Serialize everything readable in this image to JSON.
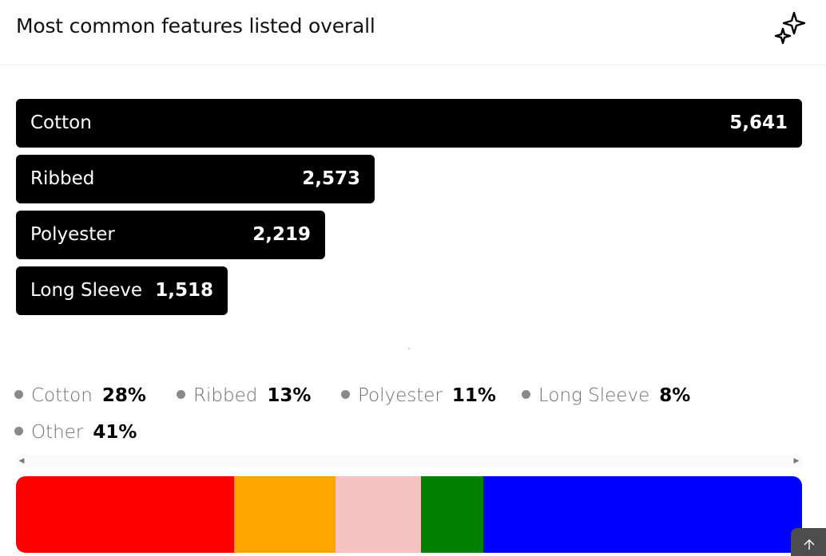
{
  "header": {
    "title": "Most common features listed overall"
  },
  "icons": {
    "ai": "sparkle-icon",
    "scroll_left": "caret-left-icon",
    "scroll_right": "caret-right-icon",
    "corner": "arrow-up-icon"
  },
  "colors": {
    "bar": "#000000",
    "legend_dot": "#8a8a8a"
  },
  "chart_data": [
    {
      "type": "bar",
      "orientation": "horizontal",
      "categories": [
        "Cotton",
        "Ribbed",
        "Polyester",
        "Long Sleeve"
      ],
      "display_labels": [
        "Cotton",
        "Ribbed",
        "Polyester",
        "Long Sleeve"
      ],
      "values": [
        5641,
        2573,
        2219,
        1518
      ],
      "value_labels": [
        "5,641",
        "2,573",
        "2,219",
        "1,518"
      ]
    },
    {
      "type": "bar",
      "orientation": "stacked-horizontal",
      "categories": [
        "Cotton",
        "Ribbed",
        "Polyester",
        "Long Sleeve",
        "Other"
      ],
      "values": [
        28,
        13,
        11,
        8,
        41
      ],
      "value_labels": [
        "28%",
        "13%",
        "11%",
        "8%",
        "41%"
      ],
      "colors": [
        "#ff0000",
        "#ffa500",
        "#f5c4c2",
        "#008000",
        "#0000ff"
      ],
      "legend_position": "top"
    }
  ]
}
